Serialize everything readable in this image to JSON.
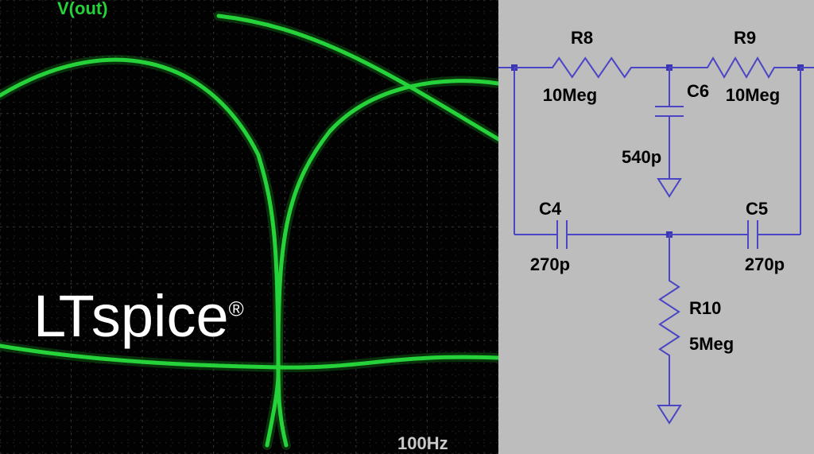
{
  "waveform": {
    "background_color": "#020202",
    "trace_color": "#25d23a",
    "trace_glow_color": "#0e5a14",
    "grid_major_color": "#333333",
    "grid_minor_color": "#1e1e1e",
    "label_color": "#25d23a",
    "axis_label_color": "#c9c9c9",
    "trace_label": "V(out)",
    "x_axis_label": "100Hz",
    "brand_text": "LTspice",
    "brand_mark": "®",
    "grid": {
      "cols_major": 7,
      "rows_major": 8,
      "minor_per_major": 5
    },
    "trace_width": 5,
    "curves": [
      "M 0 120 C 130 42, 260 65, 325 195 C 345 260, 350 310, 350 470 C 350 490, 344 520, 336 560",
      "M 360 560 C 350 520, 350 490, 350 450 C 350 300, 360 235, 415 165 C 470 105, 560 95, 627 105",
      "M 0 435 C 120 455, 245 460, 350 462 C 460 464, 490 445, 627 450",
      "M 275 20 C 405 35, 500 100, 627 175"
    ]
  },
  "schematic": {
    "background_color": "#bdbdbd",
    "wire_color": "#4a45c4",
    "node_color": "#3a37b0",
    "text_color": "#000000",
    "wire_width": 2,
    "components": {
      "R8": {
        "label": "R8",
        "value": "10Meg"
      },
      "R9": {
        "label": "R9",
        "value": "10Meg"
      },
      "C6": {
        "label": "C6",
        "value": "540p"
      },
      "C4": {
        "label": "C4",
        "value": "270p"
      },
      "C5": {
        "label": "C5",
        "value": "270p"
      },
      "R10": {
        "label": "R10",
        "value": "5Meg"
      }
    }
  }
}
